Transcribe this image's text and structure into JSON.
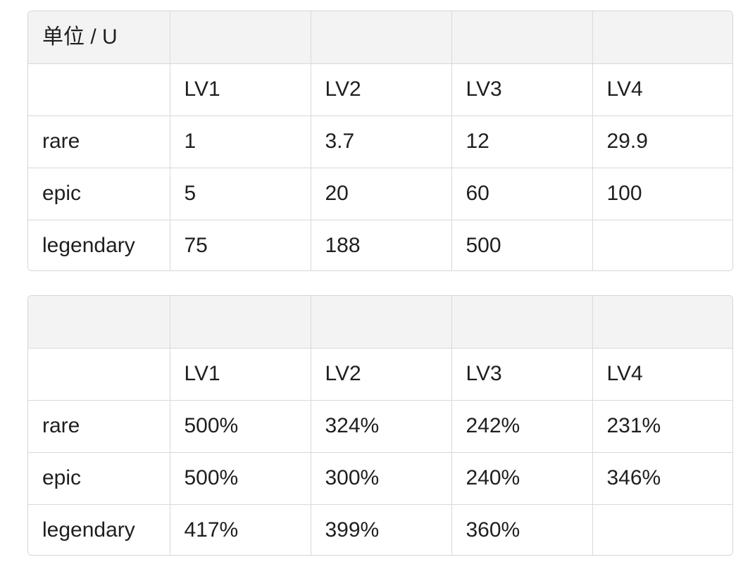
{
  "tables": [
    {
      "header": [
        "单位 / U",
        "",
        "",
        "",
        ""
      ],
      "rows": [
        [
          "",
          "LV1",
          "LV2",
          "LV3",
          "LV4"
        ],
        [
          "rare",
          "1",
          "3.7",
          "12",
          "29.9"
        ],
        [
          "epic",
          "5",
          "20",
          "60",
          "100"
        ],
        [
          "legendary",
          "75",
          "188",
          "500",
          ""
        ]
      ]
    },
    {
      "header": [
        "",
        "",
        "",
        "",
        ""
      ],
      "rows": [
        [
          "",
          "LV1",
          "LV2",
          "LV3",
          "LV4"
        ],
        [
          "rare",
          "500%",
          "324%",
          "242%",
          "231%"
        ],
        [
          "epic",
          "500%",
          "300%",
          "240%",
          "346%"
        ],
        [
          "legendary",
          "417%",
          "399%",
          "360%",
          ""
        ]
      ]
    }
  ],
  "colors": {
    "header_bg": "#f3f3f3",
    "border": "#d9d9d9",
    "text": "#1f1f1f"
  }
}
